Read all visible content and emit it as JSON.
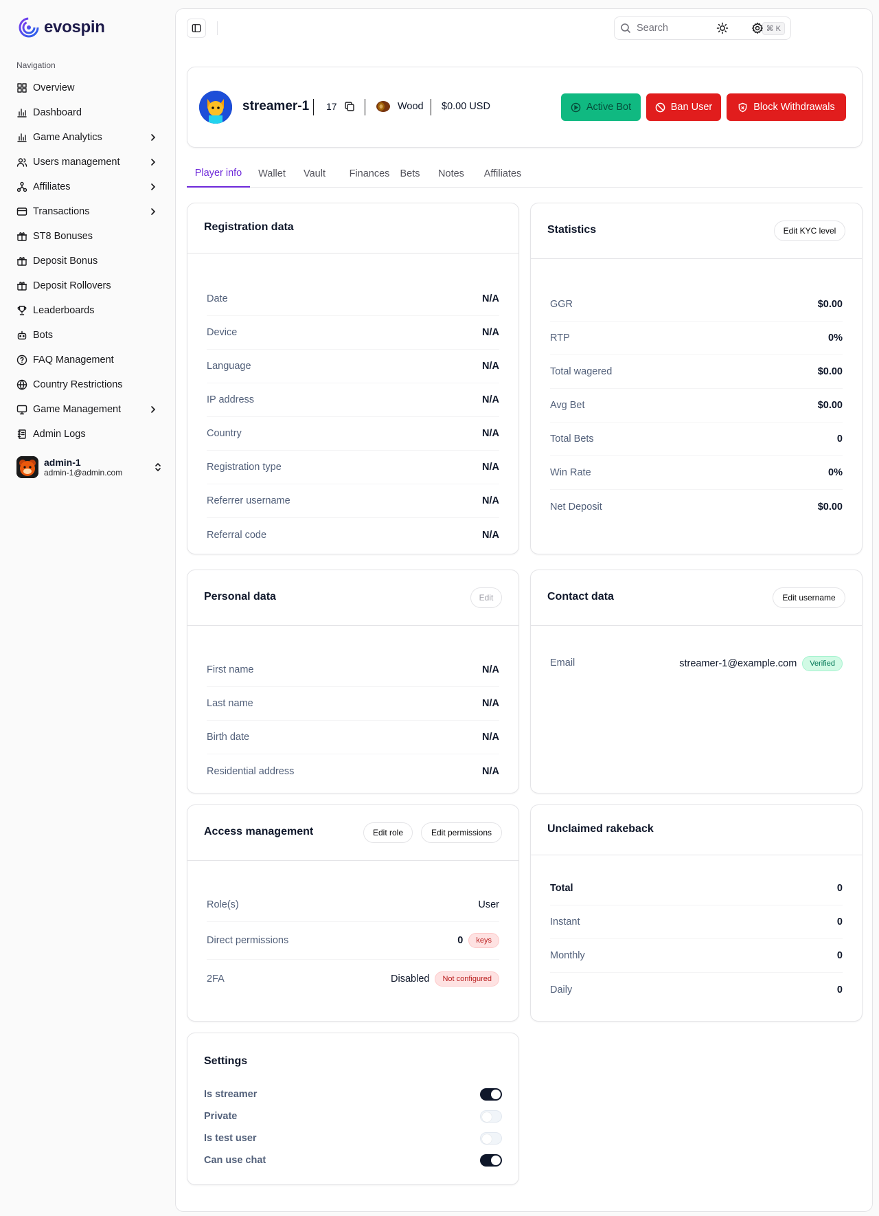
{
  "brand": {
    "name": "evospin"
  },
  "sidebar": {
    "section_title": "Navigation",
    "items": [
      {
        "label": "Overview",
        "icon": "grid-icon",
        "chevron": false
      },
      {
        "label": "Dashboard",
        "icon": "bar-chart-icon",
        "chevron": false
      },
      {
        "label": "Game Analytics",
        "icon": "bar-chart-icon",
        "chevron": true
      },
      {
        "label": "Users management",
        "icon": "users-icon",
        "chevron": true
      },
      {
        "label": "Affiliates",
        "icon": "network-icon",
        "chevron": true
      },
      {
        "label": "Transactions",
        "icon": "wallet-icon",
        "chevron": true
      },
      {
        "label": "ST8 Bonuses",
        "icon": "gift-icon",
        "chevron": false
      },
      {
        "label": "Deposit Bonus",
        "icon": "gift-icon",
        "chevron": false
      },
      {
        "label": "Deposit Rollovers",
        "icon": "gift-icon",
        "chevron": false
      },
      {
        "label": "Leaderboards",
        "icon": "trophy-icon",
        "chevron": false
      },
      {
        "label": "Bots",
        "icon": "bot-icon",
        "chevron": false
      },
      {
        "label": "FAQ Management",
        "icon": "help-circle-icon",
        "chevron": false
      },
      {
        "label": "Country Restrictions",
        "icon": "globe-icon",
        "chevron": false
      },
      {
        "label": "Game Management",
        "icon": "monitor-icon",
        "chevron": true
      },
      {
        "label": "Admin Logs",
        "icon": "log-icon",
        "chevron": false
      }
    ],
    "user": {
      "name": "admin-1",
      "email": "admin-1@admin.com"
    }
  },
  "topbar": {
    "search_placeholder": "Search",
    "shortcut": "⌘ K"
  },
  "player": {
    "username": "streamer-1",
    "level": "17",
    "rank": "Wood",
    "balance": "$0.00 USD",
    "actions": {
      "active_bot": "Active Bot",
      "ban_user": "Ban User",
      "block_withdrawals": "Block Withdrawals"
    }
  },
  "tabs": [
    "Player info",
    "Wallet",
    "Vault",
    "Finances",
    "Bets",
    "Notes",
    "Affiliates"
  ],
  "registration": {
    "title": "Registration data",
    "rows": [
      {
        "k": "Date",
        "v": "N/A"
      },
      {
        "k": "Device",
        "v": "N/A"
      },
      {
        "k": "Language",
        "v": "N/A"
      },
      {
        "k": "IP address",
        "v": "N/A"
      },
      {
        "k": "Country",
        "v": "N/A"
      },
      {
        "k": "Registration type",
        "v": "N/A"
      },
      {
        "k": "Referrer username",
        "v": "N/A"
      },
      {
        "k": "Referral code",
        "v": "N/A"
      }
    ]
  },
  "statistics": {
    "title": "Statistics",
    "edit_label": "Edit KYC level",
    "rows": [
      {
        "k": "GGR",
        "v": "$0.00"
      },
      {
        "k": "RTP",
        "v": "0%"
      },
      {
        "k": "Total wagered",
        "v": "$0.00"
      },
      {
        "k": "Avg Bet",
        "v": "$0.00"
      },
      {
        "k": "Total Bets",
        "v": "0"
      },
      {
        "k": "Win Rate",
        "v": "0%"
      },
      {
        "k": "Net Deposit",
        "v": "$0.00"
      }
    ]
  },
  "personal": {
    "title": "Personal data",
    "edit_label": "Edit",
    "rows": [
      {
        "k": "First name",
        "v": "N/A"
      },
      {
        "k": "Last name",
        "v": "N/A"
      },
      {
        "k": "Birth date",
        "v": "N/A"
      },
      {
        "k": "Residential address",
        "v": "N/A"
      }
    ]
  },
  "contact": {
    "title": "Contact data",
    "edit_label": "Edit username",
    "email_label": "Email",
    "email_value": "streamer-1@example.com",
    "email_badge": "Verified"
  },
  "access": {
    "title": "Access management",
    "edit_role": "Edit role",
    "edit_permissions": "Edit permissions",
    "roles_label": "Role(s)",
    "roles_value": "User",
    "perm_label": "Direct permissions",
    "perm_value": "0",
    "perm_badge": "keys",
    "tfa_label": "2FA",
    "tfa_value": "Disabled",
    "tfa_badge": "Not configured"
  },
  "rakeback": {
    "title": "Unclaimed rakeback",
    "rows": [
      {
        "k": "Total",
        "v": "0"
      },
      {
        "k": "Instant",
        "v": "0"
      },
      {
        "k": "Monthly",
        "v": "0"
      },
      {
        "k": "Daily",
        "v": "0"
      }
    ]
  },
  "settings": {
    "title": "Settings",
    "items": [
      {
        "label": "Is streamer",
        "on": true
      },
      {
        "label": "Private",
        "on": false
      },
      {
        "label": "Is test user",
        "on": false
      },
      {
        "label": "Can use chat",
        "on": true
      }
    ]
  },
  "colors": {
    "accent": "#6d28d9",
    "green": "#10b981",
    "red": "#e11d1d"
  }
}
